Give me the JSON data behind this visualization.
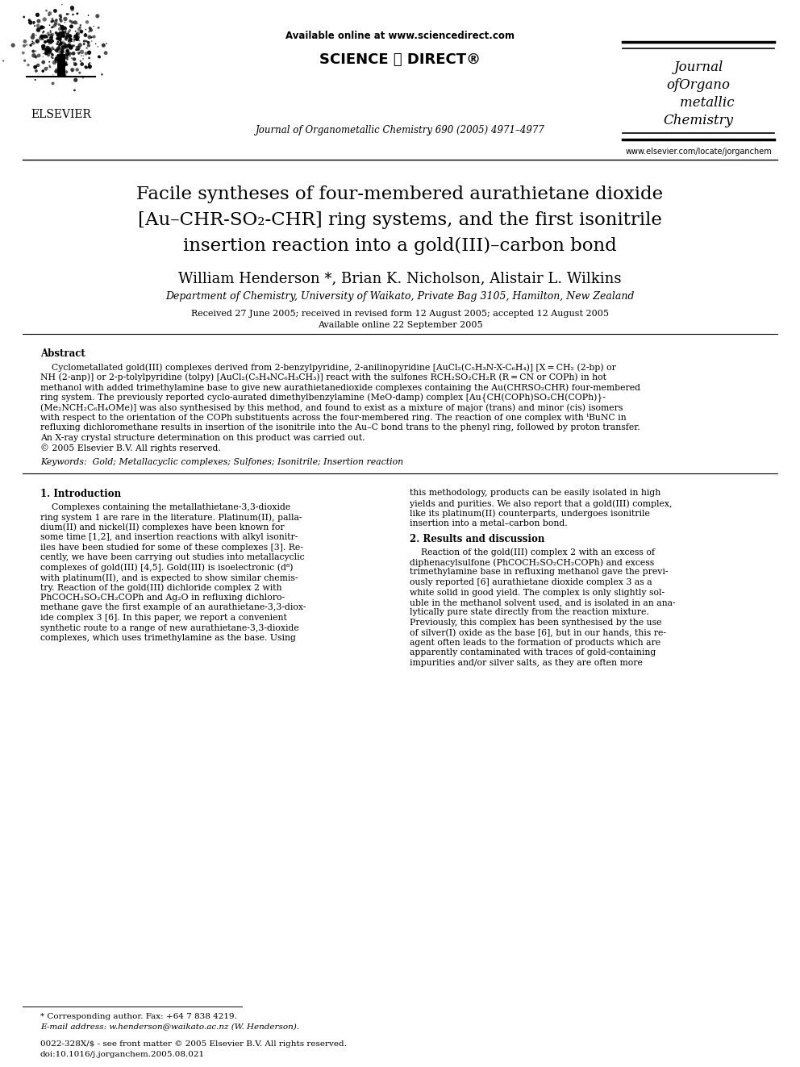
{
  "bg_color": "#ffffff",
  "header": {
    "available_online": "Available online at www.sciencedirect.com",
    "sciencedirect_logo": "SCIENCE ⓓ DIRECT®",
    "journal_line": "Journal of Organometallic Chemistry 690 (2005) 4971–4977",
    "journal_name_lines": [
      "Journal",
      "ofOrgano",
      "    metallic",
      "Chemistry"
    ],
    "website": "www.elsevier.com/locate/jorganchem",
    "elsevier_text": "ELSEVIER"
  },
  "title_lines": [
    "Facile syntheses of four-membered aurathietane dioxide",
    "[Au–CHR-SO₂-CHR] ring systems, and the first isonitrile",
    "insertion reaction into a gold(III)–carbon bond"
  ],
  "authors": "William Henderson *, Brian K. Nicholson, Alistair L. Wilkins",
  "affiliation": "Department of Chemistry, University of Waikato, Private Bag 3105, Hamilton, New Zealand",
  "received": "Received 27 June 2005; received in revised form 12 August 2005; accepted 12 August 2005",
  "available": "Available online 22 September 2005",
  "abstract_title": "Abstract",
  "abstract_text": [
    "    Cyclometallated gold(III) complexes derived from 2-benzylpyridine, 2-anilinopyridine [AuCl₂(C₅H₃N-X-C₆H₄)] [X = CH₂ (2-bp) or",
    "NH (2-anp)] or 2-p-tolylpyridine (tolpy) [AuCl₂(C₅H₄NC₆H₃CH₃)] react with the sulfones RCH₂SO₂CH₂R (R = CN or COPh) in hot",
    "methanol with added trimethylamine base to give new aurathietanedioxide complexes containing the Au(CHRSO₂CHR) four-membered",
    "ring system. The previously reported cyclo-aurated dimethylbenzylamine (MeO-damp) complex [Au{CH(COPh)SO₂CH(COPh)}-",
    "(Me₂NCH₂C₆H₄OMe)] was also synthesised by this method, and found to exist as a mixture of major (trans) and minor (cis) isomers",
    "with respect to the orientation of the COPh substituents across the four-membered ring. The reaction of one complex with ᵗBuNC in",
    "refluxing dichloromethane results in insertion of the isonitrile into the Au–C bond trans to the phenyl ring, followed by proton transfer.",
    "An X-ray crystal structure determination on this product was carried out.",
    "© 2005 Elsevier B.V. All rights reserved."
  ],
  "keywords": "Keywords:  Gold; Metallacyclic complexes; Sulfones; Isonitrile; Insertion reaction",
  "section1_title": "1. Introduction",
  "section1_left": [
    "    Complexes containing the metallathietane-3,3-dioxide",
    "ring system 1 are rare in the literature. Platinum(II), palla-",
    "dium(II) and nickel(II) complexes have been known for",
    "some time [1,2], and insertion reactions with alkyl isonitr-",
    "iles have been studied for some of these complexes [3]. Re-",
    "cently, we have been carrying out studies into metallacyclic",
    "complexes of gold(III) [4,5]. Gold(III) is isoelectronic (d⁸)",
    "with platinum(II), and is expected to show similar chemis-",
    "try. Reaction of the gold(III) dichloride complex 2 with",
    "PhCOCH₂SO₂CH₂COPh and Ag₂O in refluxing dichloro-",
    "methane gave the first example of an aurathietane-3,3-diox-",
    "ide complex 3 [6]. In this paper, we report a convenient",
    "synthetic route to a range of new aurathietane-3,3-dioxide",
    "complexes, which uses trimethylamine as the base. Using"
  ],
  "section1_right_intro": [
    "this methodology, products can be easily isolated in high",
    "yields and purities. We also report that a gold(III) complex,",
    "like its platinum(II) counterparts, undergoes isonitrile",
    "insertion into a metal–carbon bond."
  ],
  "section2_title": "2. Results and discussion",
  "section2_right": [
    "    Reaction of the gold(III) complex 2 with an excess of",
    "diphenacylsulfone (PhCOCH₂SO₂CH₂COPh) and excess",
    "trimethylamine base in refluxing methanol gave the previ-",
    "ously reported [6] aurathietane dioxide complex 3 as a",
    "white solid in good yield. The complex is only slightly sol-",
    "uble in the methanol solvent used, and is isolated in an ana-",
    "lytically pure state directly from the reaction mixture.",
    "Previously, this complex has been synthesised by the use",
    "of silver(I) oxide as the base [6], but in our hands, this re-",
    "agent often leads to the formation of products which are",
    "apparently contaminated with traces of gold-containing",
    "impurities and/or silver salts, as they are often more"
  ],
  "footnote_star": "* Corresponding author. Fax: +64 7 838 4219.",
  "footnote_email": "E-mail address: w.henderson@waikato.ac.nz (W. Henderson).",
  "footer_issn": "0022-328X/$ - see front matter © 2005 Elsevier B.V. All rights reserved.",
  "footer_doi": "doi:10.1016/j.jorganchem.2005.08.021"
}
